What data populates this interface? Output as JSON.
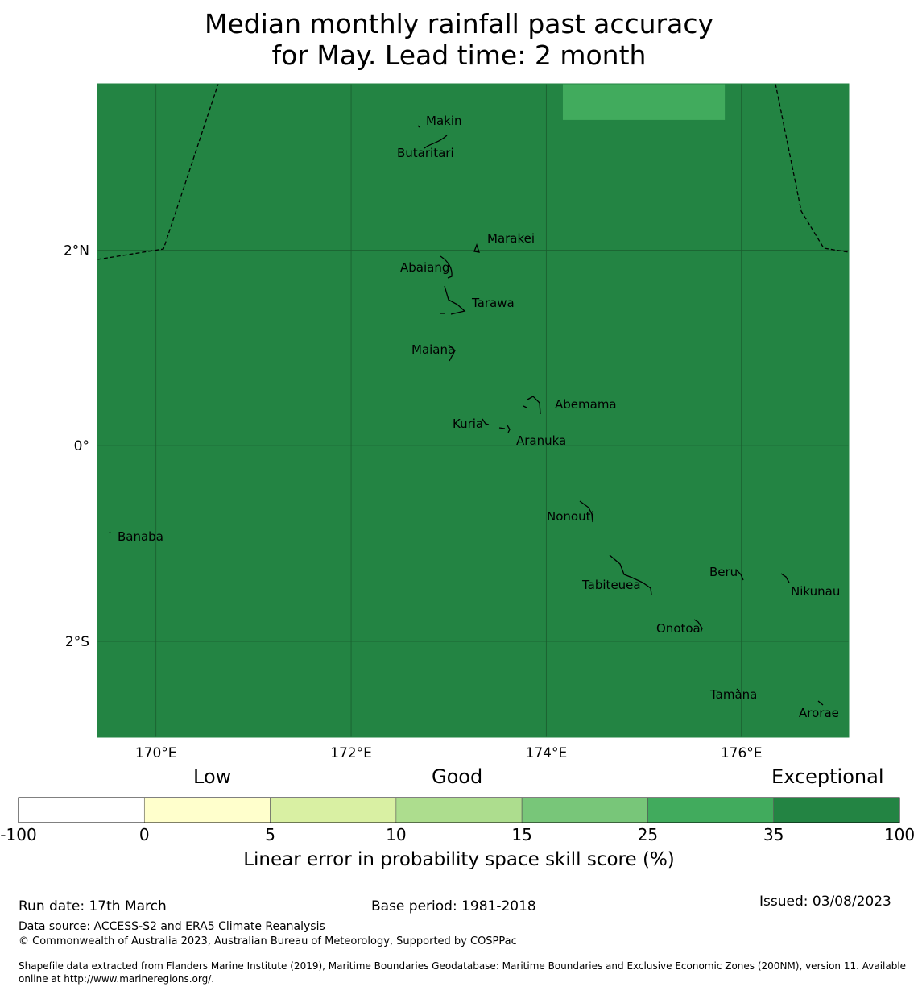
{
  "title": {
    "line1": "Median monthly rainfall past accuracy",
    "line2": "for May. Lead time: 2 month"
  },
  "map": {
    "lon_range": [
      169.4,
      177.1
    ],
    "lat_range": [
      -2.98,
      3.7
    ],
    "x_ticks": [
      {
        "lon": 170,
        "label": "170°E"
      },
      {
        "lon": 172,
        "label": "172°E"
      },
      {
        "lon": 174,
        "label": "174°E"
      },
      {
        "lon": 176,
        "label": "176°E"
      }
    ],
    "y_ticks": [
      {
        "lat": 2,
        "label": "2°N"
      },
      {
        "lat": 0,
        "label": "0°"
      },
      {
        "lat": -2,
        "label": "2°S"
      }
    ],
    "background_color": "#238443",
    "highlight_cell": {
      "lon_min": 174.17,
      "lon_max": 175.83,
      "lat_min": 3.33,
      "lat_max": 3.7,
      "color": "#41ab5d"
    },
    "islands": [
      {
        "name": "Makin",
        "lon": 172.99,
        "lat": 3.17
      },
      {
        "name": "Butaritari",
        "lon": 172.79,
        "lat": 3.07
      },
      {
        "name": "Marakei",
        "lon": 173.28,
        "lat": 2.01
      },
      {
        "name": "Abaiang",
        "lon": 172.95,
        "lat": 1.84
      },
      {
        "name": "Tarawa",
        "lon": 173.0,
        "lat": 1.42
      },
      {
        "name": "Maiana",
        "lon": 173.0,
        "lat": 0.93
      },
      {
        "name": "Abemama",
        "lon": 173.87,
        "lat": 0.42
      },
      {
        "name": "Kuria",
        "lon": 173.42,
        "lat": 0.22
      },
      {
        "name": "Aranuka",
        "lon": 173.6,
        "lat": 0.18
      },
      {
        "name": "Nonouti",
        "lon": 174.4,
        "lat": -0.64
      },
      {
        "name": "Banaba",
        "lon": 169.53,
        "lat": -0.88
      },
      {
        "name": "Tabiteuea",
        "lon": 174.8,
        "lat": -1.3
      },
      {
        "name": "Beru",
        "lon": 176.0,
        "lat": -1.33
      },
      {
        "name": "Nikunau",
        "lon": 176.45,
        "lat": -1.37
      },
      {
        "name": "Onotoa",
        "lon": 175.55,
        "lat": -1.8
      },
      {
        "name": "Tamana",
        "lon": 175.98,
        "lat": -2.5
      },
      {
        "name": "Arorae",
        "lon": 176.82,
        "lat": -2.63
      }
    ]
  },
  "colorbar": {
    "category_labels": [
      "Low",
      "Good",
      "Exceptional"
    ],
    "bins": [
      {
        "from": -100,
        "to": 0,
        "color": "#ffffff"
      },
      {
        "from": 0,
        "to": 5,
        "color": "#ffffcc"
      },
      {
        "from": 5,
        "to": 10,
        "color": "#d9f0a3"
      },
      {
        "from": 10,
        "to": 15,
        "color": "#addd8e"
      },
      {
        "from": 15,
        "to": 25,
        "color": "#78c679"
      },
      {
        "from": 25,
        "to": 35,
        "color": "#41ab5d"
      },
      {
        "from": 35,
        "to": 100,
        "color": "#238443"
      }
    ],
    "tick_labels": [
      "-100",
      "0",
      "5",
      "10",
      "15",
      "25",
      "35",
      "100"
    ],
    "label": "Linear error in probability space skill score (%)"
  },
  "footer": {
    "run_date": "Run date: 17th March",
    "base_period": "Base period: 1981-2018",
    "issued": "Issued: 03/08/2023",
    "data_source": "Data source: ACCESS-S2 and ERA5 Climate Reanalysis",
    "copyright": "© Commonwealth of Australia 2023, Australian Bureau of Meteorology, Supported by COSPPac",
    "shapefile": "Shapefile data extracted from Flanders Marine Institute (2019), Maritime Boundaries Geodatabase: Maritime Boundaries and Exclusive Economic Zones (200NM), version 11. Available online at http://www.marineregions.org/."
  }
}
